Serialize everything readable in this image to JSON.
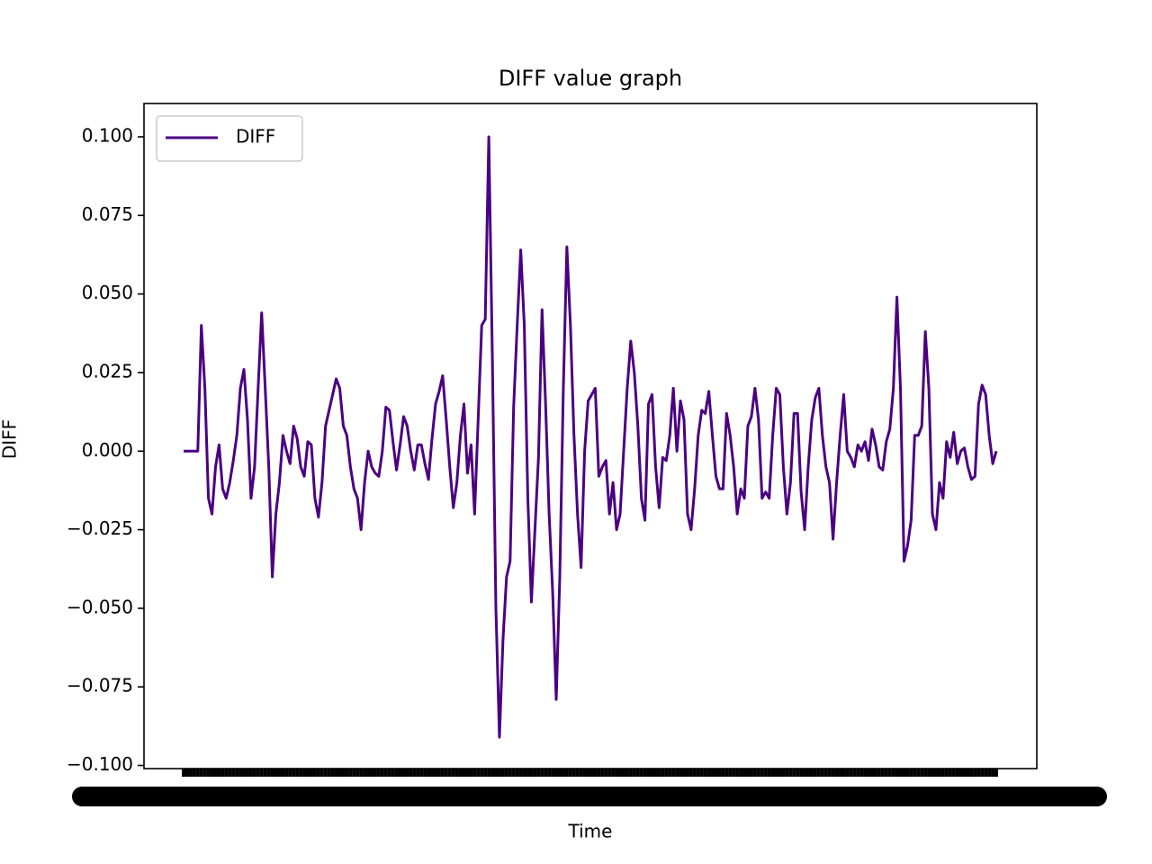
{
  "chart_data": {
    "type": "line",
    "title": "DIFF value graph",
    "x_label": "Time",
    "y_label": "DIFF",
    "categories": [
      null,
      null,
      null,
      null,
      null,
      null,
      null,
      null,
      null,
      null,
      null,
      null,
      null,
      null,
      null,
      null,
      null,
      null,
      null,
      null,
      null,
      null,
      null,
      null,
      null,
      null,
      null,
      null,
      null,
      null,
      null,
      null,
      null,
      null,
      null,
      null,
      null,
      null,
      null,
      null,
      null,
      null,
      null,
      null,
      null,
      null,
      null,
      null,
      null,
      null,
      null,
      null,
      null,
      null,
      null,
      null,
      null,
      null,
      null,
      null,
      null,
      null,
      null,
      null,
      null,
      null,
      null,
      null,
      null,
      null,
      null,
      null,
      null,
      null,
      null,
      null,
      null,
      null,
      null,
      null,
      null,
      null,
      null,
      null,
      null,
      null,
      null,
      null,
      null,
      null,
      null,
      null,
      null,
      null,
      null,
      null,
      null,
      null,
      null,
      null,
      null,
      null,
      null,
      null,
      null,
      null,
      null,
      null,
      null,
      null,
      null,
      null,
      null,
      null,
      null,
      null,
      null,
      null,
      null,
      null,
      null,
      null,
      null,
      null,
      null,
      null,
      null,
      null,
      null,
      null,
      null,
      null,
      null,
      null,
      null,
      null,
      null,
      null,
      null,
      null,
      null,
      null,
      null,
      null,
      null,
      null,
      null,
      null,
      null,
      null,
      null,
      null,
      null,
      null,
      null,
      null,
      null,
      null,
      null,
      null,
      null,
      null,
      null,
      null,
      null,
      null,
      null,
      null,
      null,
      null,
      null,
      null,
      null,
      null,
      null,
      null,
      null,
      null,
      null,
      null,
      null,
      null,
      null,
      null,
      null,
      null,
      null,
      null,
      null,
      null,
      null,
      null,
      null,
      null,
      null,
      null,
      null,
      null,
      null,
      null,
      null,
      null,
      null,
      null,
      null,
      null,
      null,
      null,
      null,
      null,
      null,
      null,
      null,
      null,
      null,
      null,
      null,
      null,
      null,
      null,
      null,
      null,
      null,
      null,
      null,
      null,
      null,
      null,
      null,
      null
    ],
    "series": [
      {
        "name": "DIFF",
        "color": "#4b0082",
        "values": [
          0,
          0,
          0,
          0,
          0,
          0.04,
          0.02,
          -0.015,
          -0.02,
          -0.005,
          0.002,
          -0.012,
          -0.015,
          -0.01,
          -0.003,
          0.005,
          0.02,
          0.026,
          0.01,
          -0.015,
          -0.005,
          0.02,
          0.044,
          0.02,
          -0.005,
          -0.04,
          -0.02,
          -0.01,
          0.005,
          0.0,
          -0.004,
          0.008,
          0.004,
          -0.005,
          -0.008,
          0.003,
          0.002,
          -0.015,
          -0.021,
          -0.01,
          0.008,
          0.013,
          0.018,
          0.023,
          0.02,
          0.008,
          0.005,
          -0.005,
          -0.012,
          -0.015,
          -0.025,
          -0.01,
          0.0,
          -0.005,
          -0.007,
          -0.008,
          0.0,
          0.014,
          0.013,
          0.003,
          -0.006,
          0.002,
          0.011,
          0.008,
          0.0,
          -0.006,
          0.002,
          0.002,
          -0.004,
          -0.009,
          0.004,
          0.015,
          0.019,
          0.024,
          0.01,
          -0.005,
          -0.018,
          -0.01,
          0.005,
          0.015,
          -0.007,
          0.002,
          -0.02,
          0.01,
          0.04,
          0.042,
          0.1,
          0.03,
          -0.05,
          -0.091,
          -0.06,
          -0.04,
          -0.035,
          0.014,
          0.04,
          0.064,
          0.04,
          -0.015,
          -0.048,
          -0.025,
          -0.002,
          0.045,
          0.015,
          -0.02,
          -0.045,
          -0.079,
          -0.04,
          0.02,
          0.065,
          0.04,
          0.005,
          -0.02,
          -0.037,
          0.0,
          0.016,
          0.018,
          0.02,
          -0.008,
          -0.005,
          -0.003,
          -0.02,
          -0.01,
          -0.025,
          -0.02,
          0.0,
          0.02,
          0.035,
          0.025,
          0.008,
          -0.015,
          -0.022,
          0.015,
          0.018,
          -0.005,
          -0.018,
          -0.002,
          -0.003,
          0.005,
          0.02,
          0.0,
          0.016,
          0.01,
          -0.02,
          -0.025,
          -0.012,
          0.005,
          0.013,
          0.012,
          0.019,
          0.005,
          -0.008,
          -0.012,
          -0.012,
          0.012,
          0.005,
          -0.005,
          -0.02,
          -0.012,
          -0.015,
          0.008,
          0.011,
          0.02,
          0.01,
          -0.015,
          -0.013,
          -0.015,
          0.005,
          0.02,
          0.018,
          -0.005,
          -0.02,
          -0.01,
          0.012,
          0.012,
          -0.013,
          -0.025,
          -0.005,
          0.01,
          0.017,
          0.02,
          0.005,
          -0.005,
          -0.01,
          -0.028,
          -0.01,
          0.005,
          0.018,
          0.0,
          -0.002,
          -0.005,
          0.002,
          0.0,
          0.003,
          -0.003,
          0.007,
          0.002,
          -0.005,
          -0.006,
          0.003,
          0.007,
          0.02,
          0.049,
          0.02,
          -0.035,
          -0.03,
          -0.022,
          0.005,
          0.005,
          0.008,
          0.038,
          0.02,
          -0.02,
          -0.025,
          -0.01,
          -0.015,
          0.003,
          -0.002,
          0.006,
          -0.004,
          0.0,
          0.001,
          -0.005,
          -0.009,
          -0.008,
          0.015,
          0.021,
          0.018,
          0.005,
          -0.004,
          0.0
        ]
      }
    ],
    "ylim": [
      -0.101,
      0.1106
    ],
    "yticks": [
      {
        "value": -0.1,
        "label": "−0.100"
      },
      {
        "value": -0.075,
        "label": "−0.075"
      },
      {
        "value": -0.05,
        "label": "−0.050"
      },
      {
        "value": -0.025,
        "label": "−0.025"
      },
      {
        "value": 0,
        "label": "0.000"
      },
      {
        "value": 0.025,
        "label": "0.025"
      },
      {
        "value": 0.05,
        "label": "0.050"
      },
      {
        "value": 0.075,
        "label": "0.075"
      },
      {
        "value": 0.1,
        "label": "0.100"
      }
    ],
    "grid": false,
    "legend": "upper left"
  }
}
